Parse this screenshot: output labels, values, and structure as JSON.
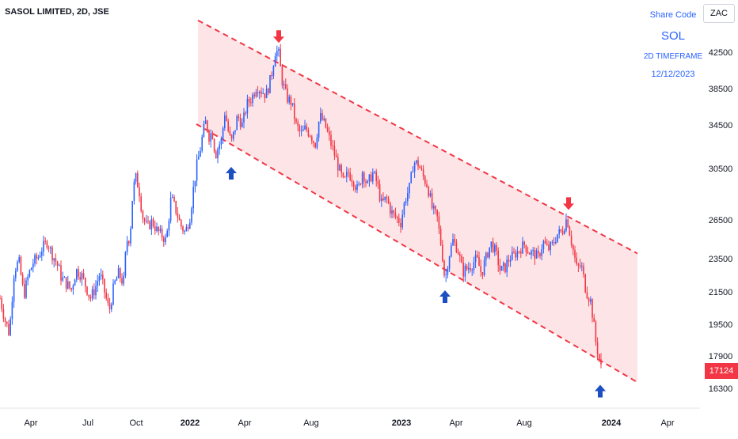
{
  "chart_data": {
    "type": "candlestick",
    "title": "SASOL LIMITED, 2D, JSE",
    "currency": "ZAC",
    "y_ticks": [
      42500,
      38500,
      34500,
      30500,
      26500,
      23500,
      21500,
      19500,
      17900,
      16300
    ],
    "current_price": "17124",
    "x_ticks": [
      "Apr",
      "Jul",
      "Oct",
      "2022",
      "Apr",
      "Aug",
      "2023",
      "Apr",
      "Aug",
      "2024",
      "Apr"
    ],
    "colors": {
      "up": "#2962ff",
      "down": "#f23645",
      "channel_fill": "#fde5e7",
      "channel_line": "#f23645"
    },
    "path": [
      [
        0,
        21100
      ],
      [
        6,
        19800
      ],
      [
        12,
        19000
      ],
      [
        18,
        22900
      ],
      [
        24,
        23300
      ],
      [
        30,
        21300
      ],
      [
        36,
        22500
      ],
      [
        42,
        23300
      ],
      [
        48,
        23600
      ],
      [
        54,
        24400
      ],
      [
        60,
        24800
      ],
      [
        66,
        23800
      ],
      [
        72,
        23200
      ],
      [
        78,
        22300
      ],
      [
        84,
        22000
      ],
      [
        90,
        21600
      ],
      [
        96,
        22800
      ],
      [
        102,
        22600
      ],
      [
        108,
        21900
      ],
      [
        114,
        21100
      ],
      [
        120,
        21700
      ],
      [
        126,
        22600
      ],
      [
        132,
        21500
      ],
      [
        138,
        20300
      ],
      [
        144,
        21900
      ],
      [
        150,
        22600
      ],
      [
        156,
        22000
      ],
      [
        160,
        24900
      ],
      [
        164,
        25100
      ],
      [
        168,
        28900
      ],
      [
        172,
        29800
      ],
      [
        176,
        28700
      ],
      [
        180,
        26800
      ],
      [
        186,
        25900
      ],
      [
        192,
        26400
      ],
      [
        198,
        25700
      ],
      [
        204,
        25300
      ],
      [
        210,
        24900
      ],
      [
        216,
        28200
      ],
      [
        222,
        27300
      ],
      [
        228,
        26100
      ],
      [
        234,
        25500
      ],
      [
        240,
        26800
      ],
      [
        244,
        28800
      ],
      [
        248,
        30600
      ],
      [
        252,
        31900
      ],
      [
        256,
        33600
      ],
      [
        260,
        34900
      ],
      [
        264,
        33500
      ],
      [
        268,
        33900
      ],
      [
        272,
        31700
      ],
      [
        276,
        32600
      ],
      [
        280,
        33100
      ],
      [
        284,
        36000
      ],
      [
        288,
        34000
      ],
      [
        292,
        32800
      ],
      [
        296,
        33900
      ],
      [
        300,
        35500
      ],
      [
        306,
        34500
      ],
      [
        312,
        36800
      ],
      [
        318,
        37500
      ],
      [
        324,
        38800
      ],
      [
        330,
        38300
      ],
      [
        336,
        37800
      ],
      [
        342,
        39600
      ],
      [
        348,
        42900
      ],
      [
        352,
        42200
      ],
      [
        356,
        39500
      ],
      [
        362,
        37500
      ],
      [
        368,
        37000
      ],
      [
        374,
        34500
      ],
      [
        380,
        33600
      ],
      [
        386,
        34200
      ],
      [
        392,
        33700
      ],
      [
        398,
        32700
      ],
      [
        404,
        35500
      ],
      [
        410,
        34600
      ],
      [
        416,
        33200
      ],
      [
        422,
        31900
      ],
      [
        428,
        30500
      ],
      [
        434,
        29300
      ],
      [
        440,
        30200
      ],
      [
        446,
        29700
      ],
      [
        452,
        28700
      ],
      [
        458,
        30400
      ],
      [
        464,
        29100
      ],
      [
        470,
        30200
      ],
      [
        476,
        29400
      ],
      [
        482,
        27700
      ],
      [
        488,
        28200
      ],
      [
        494,
        27100
      ],
      [
        500,
        26700
      ],
      [
        506,
        26300
      ],
      [
        512,
        28200
      ],
      [
        518,
        29100
      ],
      [
        522,
        31100
      ],
      [
        528,
        30900
      ],
      [
        534,
        29900
      ],
      [
        540,
        29200
      ],
      [
        546,
        27300
      ],
      [
        552,
        26700
      ],
      [
        558,
        24100
      ],
      [
        562,
        22100
      ],
      [
        566,
        23500
      ],
      [
        572,
        24900
      ],
      [
        578,
        24200
      ],
      [
        584,
        22700
      ],
      [
        590,
        22900
      ],
      [
        596,
        23200
      ],
      [
        602,
        23500
      ],
      [
        608,
        22600
      ],
      [
        614,
        23600
      ],
      [
        620,
        24700
      ],
      [
        626,
        24000
      ],
      [
        632,
        22700
      ],
      [
        638,
        23000
      ],
      [
        644,
        23600
      ],
      [
        650,
        23800
      ],
      [
        656,
        24200
      ],
      [
        662,
        24600
      ],
      [
        668,
        24000
      ],
      [
        674,
        23900
      ],
      [
        680,
        23600
      ],
      [
        686,
        24800
      ],
      [
        692,
        24200
      ],
      [
        698,
        24600
      ],
      [
        704,
        25400
      ],
      [
        710,
        25600
      ],
      [
        716,
        26700
      ],
      [
        722,
        24700
      ],
      [
        728,
        22900
      ],
      [
        734,
        23100
      ],
      [
        740,
        21600
      ],
      [
        746,
        20900
      ],
      [
        752,
        18700
      ],
      [
        756,
        17900
      ],
      [
        760,
        17124
      ]
    ],
    "channel": {
      "upper": [
        [
          250,
          46000
        ],
        [
          805,
          23900
        ]
      ],
      "lower": [
        [
          250,
          34500
        ],
        [
          805,
          16600
        ]
      ]
    },
    "arrows": [
      {
        "dir": "down",
        "x": 352,
        "y": 43700
      },
      {
        "dir": "down",
        "x": 718,
        "y": 27400
      },
      {
        "dir": "up",
        "x": 292,
        "y": 30500
      },
      {
        "dir": "up",
        "x": 562,
        "y": 21500
      },
      {
        "dir": "up",
        "x": 758,
        "y": 16400
      }
    ]
  },
  "info_box": {
    "label": "Share Code",
    "code": "SOL",
    "timeframe": "2D TIMEFRAME",
    "date": "12/12/2023"
  }
}
